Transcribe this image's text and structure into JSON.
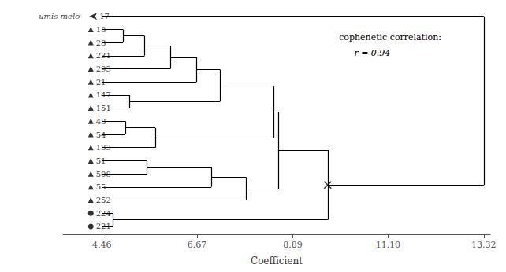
{
  "chart_data": {
    "type": "dendrogram",
    "xlabel": "Coefficient",
    "leaves": [
      "17",
      "18",
      "28",
      "231",
      "293",
      "21",
      "147",
      "151",
      "48",
      "54",
      "183",
      "51",
      "508",
      "55",
      "252",
      "224",
      "221"
    ],
    "markers": [
      "arrow",
      "triangle",
      "triangle",
      "triangle",
      "triangle",
      "triangle",
      "triangle",
      "triangle",
      "triangle",
      "triangle",
      "triangle",
      "triangle",
      "triangle",
      "triangle",
      "triangle",
      "circle",
      "circle"
    ],
    "outgroup_label": "umis melo",
    "annotations": [
      "cophenetic correlation:",
      "r = 0.94"
    ],
    "leaf_x": 4.46,
    "tree": {
      "height": 13.32,
      "children": [
        "17",
        {
          "height": 9.7,
          "marker": "cross",
          "children": [
            {
              "height": 8.55,
              "children": [
                {
                  "height": 8.45,
                  "children": [
                    {
                      "height": 7.2,
                      "children": [
                        {
                          "height": 6.65,
                          "children": [
                            {
                              "height": 6.05,
                              "children": [
                                {
                                  "height": 5.45,
                                  "children": [
                                    {
                                      "height": 4.95,
                                      "children": [
                                        "18",
                                        "28"
                                      ]
                                    },
                                    "231"
                                  ]
                                },
                                "293"
                              ]
                            },
                            "21"
                          ]
                        },
                        {
                          "height": 5.1,
                          "children": [
                            "147",
                            "151"
                          ]
                        }
                      ]
                    },
                    {
                      "height": 5.7,
                      "children": [
                        {
                          "height": 5.0,
                          "children": [
                            "48",
                            "54"
                          ]
                        },
                        "183"
                      ]
                    }
                  ]
                },
                {
                  "height": 7.8,
                  "children": [
                    {
                      "height": 7.0,
                      "children": [
                        {
                          "height": 5.5,
                          "children": [
                            "51",
                            "508"
                          ]
                        },
                        "55"
                      ]
                    },
                    "252"
                  ]
                }
              ]
            },
            {
              "height": 4.72,
              "children": [
                "224",
                "221"
              ]
            }
          ]
        }
      ]
    },
    "color": "black",
    "xlim": [
      3.56,
      13.47
    ],
    "xticks": [
      4.46,
      6.67,
      8.89,
      {
        "value": 11.1,
        "label": "11.10"
      },
      13.32
    ],
    "grid": false
  }
}
